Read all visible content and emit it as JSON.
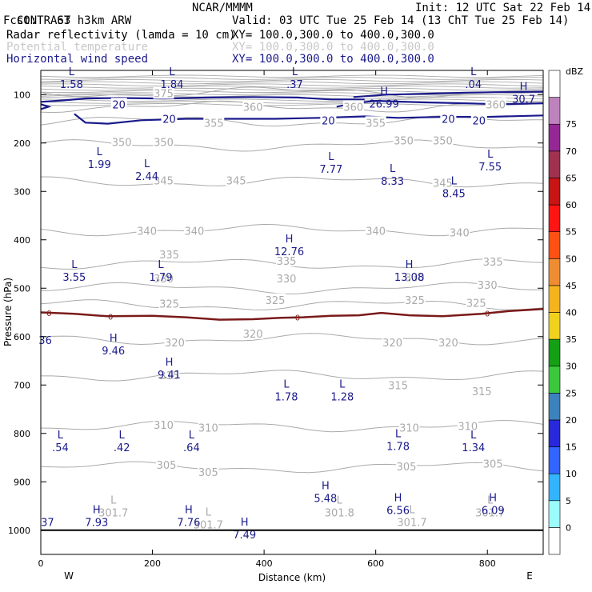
{
  "header": {
    "l1": "CONTRAST  3km ARW",
    "org": "NCAR/MMMM",
    "init": "Init: 12 UTC Sat 22 Feb 14",
    "l2": "Fcst:   63 h",
    "valid": "Valid: 03 UTC Tue 25 Feb 14 (13 ChT Tue 25 Feb 14)",
    "f1": "Radar reflectivity (lamda = 10 cm)",
    "f1xy": "XY= 100.0,300.0 to 400.0,300.0",
    "f2": "Potential temperature",
    "f2xy": "XY= 100.0,300.0 to 400.0,300.0",
    "f3": "Horizontal wind speed",
    "f3xy": "XY= 100.0,300.0 to 400.0,300.0"
  },
  "colors": {
    "theta": "#aaaaaa",
    "wind": "#1a1a8c",
    "zero": "#7a1a1a",
    "label_gray": "#bbbbbb"
  },
  "chart_data": {
    "type": "contour",
    "xlabel": "Distance (km)",
    "ylabel": "Pressure (hPa)",
    "xlim": [
      0,
      900
    ],
    "ylim": [
      1050,
      50
    ],
    "xticks": [
      0,
      200,
      400,
      600,
      800
    ],
    "yticks": [
      100,
      200,
      300,
      400,
      500,
      600,
      700,
      800,
      900,
      1000
    ],
    "west_label": "W",
    "east_label": "E",
    "colorbar": {
      "unit": "dBZ",
      "levels": [
        0,
        5,
        10,
        15,
        20,
        25,
        30,
        35,
        40,
        45,
        50,
        55,
        60,
        65,
        70,
        75
      ],
      "colors": [
        "#ffffff",
        "#9cfcfc",
        "#32b4ff",
        "#3264ff",
        "#2828dc",
        "#3c82bd",
        "#3cc83c",
        "#14a014",
        "#f0d21e",
        "#f5b41e",
        "#f08c32",
        "#ff5014",
        "#ff1414",
        "#c81414",
        "#a03250",
        "#962896",
        "#be82be",
        "#ffffff"
      ]
    },
    "theta_levels": [
      {
        "value": 375,
        "p": 95
      },
      {
        "value": 360,
        "p": 125
      },
      {
        "value": 355,
        "p": 155
      },
      {
        "value": 350,
        "p": 205
      },
      {
        "value": 345,
        "p": 280
      },
      {
        "value": 340,
        "p": 380
      },
      {
        "value": 335,
        "p": 450
      },
      {
        "value": 330,
        "p": 500
      },
      {
        "value": 325,
        "p": 535
      },
      {
        "value": 320,
        "p": 605
      },
      {
        "value": 315,
        "p": 680
      },
      {
        "value": 310,
        "p": 785
      },
      {
        "value": 305,
        "p": 870
      }
    ],
    "theta_labels": [
      {
        "text": "375",
        "x": 220,
        "p": 97
      },
      {
        "text": "360",
        "x": 380,
        "p": 125
      },
      {
        "text": "360",
        "x": 560,
        "p": 125
      },
      {
        "text": "360",
        "x": 815,
        "p": 120
      },
      {
        "text": "355",
        "x": 310,
        "p": 158
      },
      {
        "text": "355",
        "x": 600,
        "p": 158
      },
      {
        "text": "350",
        "x": 145,
        "p": 198
      },
      {
        "text": "350",
        "x": 220,
        "p": 198
      },
      {
        "text": "350",
        "x": 650,
        "p": 195
      },
      {
        "text": "350",
        "x": 720,
        "p": 195
      },
      {
        "text": "345",
        "x": 220,
        "p": 277
      },
      {
        "text": "345",
        "x": 350,
        "p": 277
      },
      {
        "text": "345",
        "x": 720,
        "p": 282
      },
      {
        "text": "340",
        "x": 190,
        "p": 381
      },
      {
        "text": "340",
        "x": 275,
        "p": 381
      },
      {
        "text": "340",
        "x": 600,
        "p": 381
      },
      {
        "text": "340",
        "x": 750,
        "p": 385
      },
      {
        "text": "335",
        "x": 230,
        "p": 430
      },
      {
        "text": "335",
        "x": 440,
        "p": 443
      },
      {
        "text": "335",
        "x": 810,
        "p": 445
      },
      {
        "text": "330",
        "x": 220,
        "p": 480
      },
      {
        "text": "330",
        "x": 440,
        "p": 480
      },
      {
        "text": "330",
        "x": 670,
        "p": 477
      },
      {
        "text": "330",
        "x": 800,
        "p": 493
      },
      {
        "text": "325",
        "x": 230,
        "p": 532
      },
      {
        "text": "325",
        "x": 420,
        "p": 524
      },
      {
        "text": "325",
        "x": 670,
        "p": 524
      },
      {
        "text": "325",
        "x": 780,
        "p": 530
      },
      {
        "text": "320",
        "x": 240,
        "p": 612
      },
      {
        "text": "320",
        "x": 380,
        "p": 594
      },
      {
        "text": "320",
        "x": 630,
        "p": 612
      },
      {
        "text": "320",
        "x": 730,
        "p": 612
      },
      {
        "text": "315",
        "x": 230,
        "p": 680
      },
      {
        "text": "315",
        "x": 640,
        "p": 700
      },
      {
        "text": "315",
        "x": 790,
        "p": 713
      },
      {
        "text": "310",
        "x": 220,
        "p": 782
      },
      {
        "text": "310",
        "x": 300,
        "p": 788
      },
      {
        "text": "310",
        "x": 660,
        "p": 788
      },
      {
        "text": "310",
        "x": 765,
        "p": 785
      },
      {
        "text": "305",
        "x": 225,
        "p": 865
      },
      {
        "text": "305",
        "x": 300,
        "p": 880
      },
      {
        "text": "305",
        "x": 655,
        "p": 868
      },
      {
        "text": "305",
        "x": 810,
        "p": 862
      }
    ],
    "theta_lh": [
      {
        "mark": "L",
        "value": "301.7",
        "x": 130,
        "p": 965
      },
      {
        "mark": "L",
        "value": "301.7",
        "x": 300,
        "p": 990
      },
      {
        "mark": "L",
        "value": "301.8",
        "x": 535,
        "p": 965
      },
      {
        "mark": "L",
        "value": "301.7",
        "x": 665,
        "p": 985
      },
      {
        "mark": "L",
        "value": "301.7",
        "x": 805,
        "p": 965
      }
    ],
    "wind_contours": [
      {
        "value": 20,
        "label": "20"
      }
    ],
    "wind_labels": [
      {
        "text": "20",
        "x": 140,
        "p": 120
      },
      {
        "text": "20",
        "x": 230,
        "p": 150
      },
      {
        "text": "20",
        "x": 515,
        "p": 153
      },
      {
        "text": "20",
        "x": 730,
        "p": 150
      },
      {
        "text": "20",
        "x": 785,
        "p": 153
      }
    ],
    "wind_extrema": [
      {
        "mark": "L",
        "value": "1.58",
        "x": 55,
        "p": 80
      },
      {
        "mark": "L",
        "value": "1.84",
        "x": 235,
        "p": 80
      },
      {
        "mark": "L",
        "value": ".37",
        "x": 455,
        "p": 80
      },
      {
        "mark": "L",
        "value": ".04",
        "x": 775,
        "p": 80
      },
      {
        "mark": "H",
        "value": "26.99",
        "x": 615,
        "p": 120
      },
      {
        "mark": "H",
        "value": "30.7",
        "x": 865,
        "p": 110
      },
      {
        "mark": "L",
        "value": "1.99",
        "x": 105,
        "p": 245
      },
      {
        "mark": "L",
        "value": "2.44",
        "x": 190,
        "p": 270
      },
      {
        "mark": "L",
        "value": "7.77",
        "x": 520,
        "p": 255
      },
      {
        "mark": "L",
        "value": "8.33",
        "x": 630,
        "p": 280
      },
      {
        "mark": "L",
        "value": "8.45",
        "x": 740,
        "p": 305
      },
      {
        "mark": "L",
        "value": "7.55",
        "x": 805,
        "p": 250
      },
      {
        "mark": "H",
        "value": "12.76",
        "x": 445,
        "p": 425
      },
      {
        "mark": "L",
        "value": "3.55",
        "x": 60,
        "p": 478
      },
      {
        "mark": "L",
        "value": "1.79",
        "x": 215,
        "p": 478
      },
      {
        "mark": "H",
        "value": "13.08",
        "x": 660,
        "p": 478
      },
      {
        "mark": "H",
        "value": "9.46",
        "x": 130,
        "p": 630
      },
      {
        "mark": "H",
        "value": "9.41",
        "x": 230,
        "p": 680
      },
      {
        "mark": "L",
        "value": "1.78",
        "x": 440,
        "p": 725
      },
      {
        "mark": "L",
        "value": "1.28",
        "x": 540,
        "p": 725
      },
      {
        "mark": "L",
        "value": "1.78",
        "x": 640,
        "p": 828
      },
      {
        "mark": "L",
        "value": ".54",
        "x": 35,
        "p": 830
      },
      {
        "mark": "L",
        "value": ".42",
        "x": 145,
        "p": 830
      },
      {
        "mark": "L",
        "value": ".64",
        "x": 270,
        "p": 830
      },
      {
        "mark": "L",
        "value": "1.34",
        "x": 775,
        "p": 830
      },
      {
        "mark": "H",
        "value": "5.48",
        "x": 510,
        "p": 935
      },
      {
        "mark": "H",
        "value": "6.56",
        "x": 640,
        "p": 960
      },
      {
        "mark": "H",
        "value": "6.09",
        "x": 810,
        "p": 960
      },
      {
        "mark": "H",
        "value": "7.93",
        "x": 100,
        "p": 985
      },
      {
        "mark": "H",
        "value": "7.76",
        "x": 265,
        "p": 985
      },
      {
        "mark": "H",
        "value": "7.49",
        "x": 365,
        "p": 1010
      },
      {
        "mark": "",
        "value": "37",
        "x": 12,
        "p": 985
      }
    ],
    "freezing_level": {
      "label": "0",
      "points": [
        [
          0,
          550
        ],
        [
          60,
          553
        ],
        [
          120,
          558
        ],
        [
          200,
          557
        ],
        [
          260,
          560
        ],
        [
          320,
          565
        ],
        [
          380,
          564
        ],
        [
          430,
          561
        ],
        [
          470,
          560
        ],
        [
          520,
          557
        ],
        [
          570,
          556
        ],
        [
          610,
          551
        ],
        [
          660,
          556
        ],
        [
          720,
          558
        ],
        [
          790,
          553
        ],
        [
          840,
          547
        ],
        [
          900,
          543
        ]
      ]
    },
    "freezing_extra_labels": [
      {
        "text": "36",
        "x": 8,
        "p": 607
      }
    ]
  }
}
